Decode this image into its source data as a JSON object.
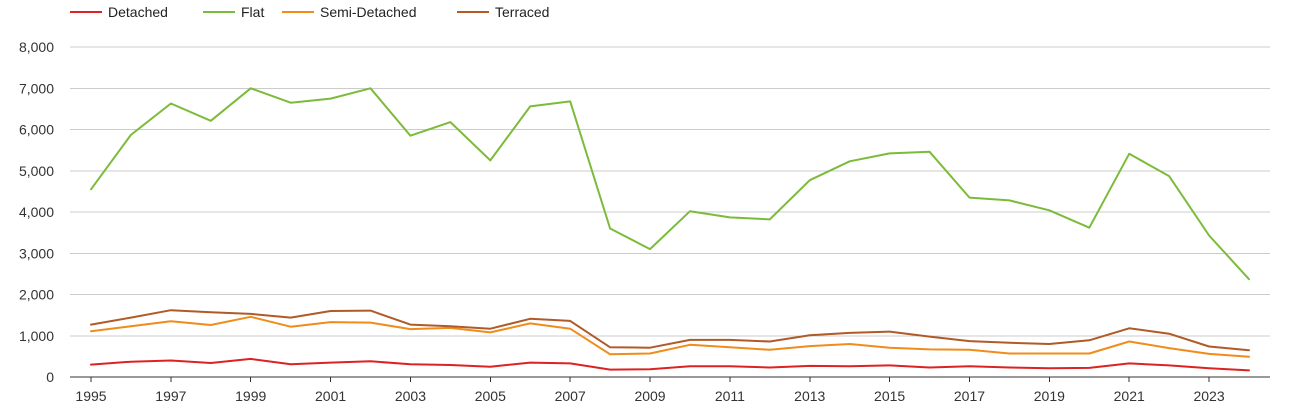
{
  "chart_data": {
    "type": "line",
    "title": "",
    "xlabel": "",
    "ylabel": "",
    "x": [
      1995,
      1996,
      1997,
      1998,
      1999,
      2000,
      2001,
      2002,
      2003,
      2004,
      2005,
      2006,
      2007,
      2008,
      2009,
      2010,
      2011,
      2012,
      2013,
      2014,
      2015,
      2016,
      2017,
      2018,
      2019,
      2020,
      2021,
      2022,
      2023,
      2024
    ],
    "xticks": [
      "1995",
      "1997",
      "1999",
      "2001",
      "2003",
      "2005",
      "2007",
      "2009",
      "2011",
      "2013",
      "2015",
      "2017",
      "2019",
      "2021",
      "2023"
    ],
    "xtick_values": [
      1995,
      1997,
      1999,
      2001,
      2003,
      2005,
      2007,
      2009,
      2011,
      2013,
      2015,
      2017,
      2019,
      2021,
      2023
    ],
    "yticks": [
      "0",
      "1,000",
      "2,000",
      "3,000",
      "4,000",
      "5,000",
      "6,000",
      "7,000",
      "8,000"
    ],
    "ytick_values": [
      0,
      1000,
      2000,
      3000,
      4000,
      5000,
      6000,
      7000,
      8000
    ],
    "ylim": [
      0,
      8000
    ],
    "xlim": [
      1995,
      2024
    ],
    "grid": "horizontal",
    "legend_position": "top-left",
    "series": [
      {
        "name": "Detached",
        "color": "#dd2222",
        "values": [
          300,
          370,
          400,
          340,
          440,
          310,
          350,
          380,
          310,
          290,
          250,
          350,
          330,
          180,
          190,
          260,
          260,
          230,
          270,
          260,
          280,
          230,
          260,
          230,
          210,
          220,
          330,
          280,
          210,
          160
        ]
      },
      {
        "name": "Flat",
        "color": "#7cbb3a",
        "values": [
          4550,
          5870,
          6630,
          6210,
          7000,
          6650,
          6750,
          7000,
          5850,
          6180,
          5250,
          6560,
          6680,
          3600,
          3100,
          4020,
          3870,
          3820,
          4770,
          5230,
          5420,
          5460,
          4350,
          4280,
          4040,
          3620,
          5410,
          4870,
          3430,
          2370
        ]
      },
      {
        "name": "Semi-Detached",
        "color": "#f08c1a",
        "values": [
          1110,
          1230,
          1350,
          1260,
          1460,
          1220,
          1330,
          1320,
          1160,
          1190,
          1080,
          1300,
          1170,
          550,
          570,
          780,
          720,
          660,
          750,
          800,
          710,
          670,
          660,
          570,
          570,
          570,
          860,
          700,
          560,
          490
        ]
      },
      {
        "name": "Terraced",
        "color": "#b05a28",
        "values": [
          1270,
          1440,
          1620,
          1570,
          1530,
          1440,
          1600,
          1610,
          1270,
          1230,
          1170,
          1410,
          1360,
          720,
          710,
          900,
          900,
          860,
          1010,
          1070,
          1100,
          980,
          870,
          830,
          800,
          890,
          1180,
          1050,
          740,
          650
        ]
      }
    ]
  }
}
